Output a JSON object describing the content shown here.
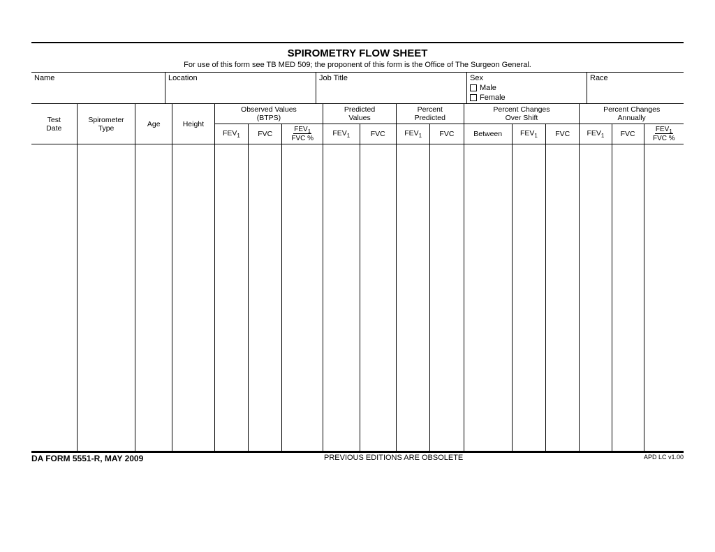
{
  "header": {
    "title": "SPIROMETRY FLOW SHEET",
    "subtitle": "For use of this form see TB MED 509; the proponent of this form is the Office of The Surgeon General."
  },
  "info": {
    "name_label": "Name",
    "location_label": "Location",
    "jobtitle_label": "Job Title",
    "sex_label": "Sex",
    "sex_male": "Male",
    "sex_female": "Female",
    "race_label": "Race"
  },
  "groups": {
    "observed": "Observed Values",
    "observed_sub": "(BTPS)",
    "predicted": "Predicted",
    "predicted_sub": "Values",
    "percent_pred": "Percent",
    "percent_pred_sub": "Predicted",
    "shift": "Percent Changes",
    "shift_sub": "Over Shift",
    "annual": "Percent Changes",
    "annual_sub": "Annually"
  },
  "cols": {
    "test_date_l1": "Test",
    "test_date_l2": "Date",
    "spiro_l1": "Spirometer",
    "spiro_l2": "Type",
    "age": "Age",
    "height": "Height",
    "fev1": "FEV",
    "fvc": "FVC",
    "between": "Between",
    "frac_top": "FEV",
    "frac_bot": "FVC",
    "frac_pct": "%"
  },
  "footer": {
    "left": "DA FORM 5551-R, MAY 2009",
    "center": "PREVIOUS EDITIONS ARE OBSOLETE",
    "right": "APD LC v1.00"
  }
}
